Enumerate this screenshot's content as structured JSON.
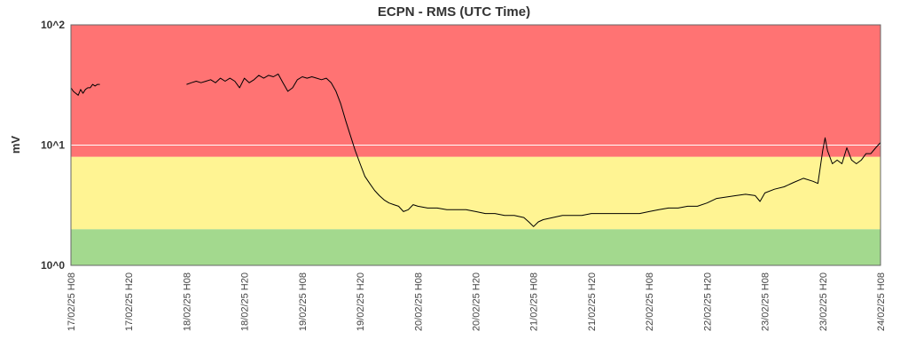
{
  "chart_data": {
    "type": "line",
    "title": "ECPN - RMS (UTC Time)",
    "ylabel": "mV",
    "xlabel": "",
    "y_scale": "log",
    "ylim": [
      1,
      100
    ],
    "y_ticks": [
      {
        "label": "10^0",
        "value": 1
      },
      {
        "label": "10^1",
        "value": 10
      },
      {
        "label": "10^2",
        "value": 100
      }
    ],
    "x_ticks": [
      {
        "label": "17/02/25 H08",
        "t": 0
      },
      {
        "label": "17/02/25 H20",
        "t": 12
      },
      {
        "label": "18/02/25 H08",
        "t": 24
      },
      {
        "label": "18/02/25 H20",
        "t": 36
      },
      {
        "label": "19/02/25 H08",
        "t": 48
      },
      {
        "label": "19/02/25 H20",
        "t": 60
      },
      {
        "label": "20/02/25 H08",
        "t": 72
      },
      {
        "label": "20/02/25 H20",
        "t": 84
      },
      {
        "label": "21/02/25 H08",
        "t": 96
      },
      {
        "label": "21/02/25 H20",
        "t": 108
      },
      {
        "label": "22/02/25 H08",
        "t": 120
      },
      {
        "label": "22/02/25 H20",
        "t": 132
      },
      {
        "label": "23/02/25 H08",
        "t": 144
      },
      {
        "label": "23/02/25 H20",
        "t": 156
      },
      {
        "label": "24/02/25 H08",
        "t": 168
      }
    ],
    "bands": [
      {
        "from": 1,
        "to": 2,
        "color": "#a3d98e"
      },
      {
        "from": 2,
        "to": 8,
        "color": "#fff493"
      },
      {
        "from": 8,
        "to": 100,
        "color": "#ff7373"
      }
    ],
    "grid": true,
    "line_color": "#000000",
    "series": [
      {
        "segments": [
          {
            "points": [
              [
                0,
                30
              ],
              [
                0.5,
                28
              ],
              [
                1,
                27
              ],
              [
                1.5,
                26
              ],
              [
                2,
                29
              ],
              [
                2.5,
                27
              ],
              [
                3,
                29
              ],
              [
                3.5,
                30
              ],
              [
                4,
                30
              ],
              [
                4.5,
                32
              ],
              [
                5,
                31
              ],
              [
                5.5,
                32
              ],
              [
                6,
                32
              ]
            ]
          },
          {
            "points": [
              [
                24,
                32
              ],
              [
                25,
                33
              ],
              [
                26,
                34
              ],
              [
                27,
                33
              ],
              [
                28,
                34
              ],
              [
                29,
                35
              ],
              [
                30,
                33
              ],
              [
                31,
                36
              ],
              [
                32,
                34
              ],
              [
                33,
                36
              ],
              [
                34,
                34
              ],
              [
                35,
                30
              ],
              [
                36,
                36
              ],
              [
                37,
                33
              ],
              [
                38,
                35
              ],
              [
                39,
                38
              ],
              [
                40,
                36
              ],
              [
                41,
                38
              ],
              [
                42,
                37
              ],
              [
                43,
                39
              ],
              [
                44,
                33
              ],
              [
                45,
                28
              ],
              [
                46,
                30
              ],
              [
                47,
                35
              ],
              [
                48,
                37
              ],
              [
                49,
                36
              ],
              [
                50,
                37
              ],
              [
                51,
                36
              ],
              [
                52,
                35
              ],
              [
                53,
                36
              ],
              [
                54,
                33
              ],
              [
                55,
                28
              ],
              [
                56,
                22
              ],
              [
                57,
                16
              ],
              [
                58,
                12
              ],
              [
                59,
                9
              ],
              [
                60,
                7
              ],
              [
                61,
                5.5
              ],
              [
                62,
                4.8
              ],
              [
                63,
                4.2
              ],
              [
                64,
                3.8
              ],
              [
                65,
                3.5
              ],
              [
                66,
                3.3
              ],
              [
                67,
                3.2
              ],
              [
                68,
                3.1
              ],
              [
                69,
                2.8
              ],
              [
                70,
                2.9
              ],
              [
                71,
                3.2
              ],
              [
                72,
                3.1
              ],
              [
                74,
                3.0
              ],
              [
                76,
                3.0
              ],
              [
                78,
                2.9
              ],
              [
                80,
                2.9
              ],
              [
                82,
                2.9
              ],
              [
                84,
                2.8
              ],
              [
                86,
                2.7
              ],
              [
                88,
                2.7
              ],
              [
                90,
                2.6
              ],
              [
                92,
                2.6
              ],
              [
                94,
                2.5
              ],
              [
                95,
                2.3
              ],
              [
                96,
                2.1
              ],
              [
                97,
                2.3
              ],
              [
                98,
                2.4
              ],
              [
                100,
                2.5
              ],
              [
                102,
                2.6
              ],
              [
                104,
                2.6
              ],
              [
                106,
                2.6
              ],
              [
                108,
                2.7
              ],
              [
                110,
                2.7
              ],
              [
                112,
                2.7
              ],
              [
                114,
                2.7
              ],
              [
                116,
                2.7
              ],
              [
                118,
                2.7
              ],
              [
                120,
                2.8
              ],
              [
                122,
                2.9
              ],
              [
                124,
                3.0
              ],
              [
                126,
                3.0
              ],
              [
                128,
                3.1
              ],
              [
                130,
                3.1
              ],
              [
                132,
                3.3
              ],
              [
                134,
                3.6
              ],
              [
                136,
                3.7
              ],
              [
                138,
                3.8
              ],
              [
                140,
                3.9
              ],
              [
                142,
                3.8
              ],
              [
                143,
                3.4
              ],
              [
                144,
                4.0
              ],
              [
                146,
                4.3
              ],
              [
                148,
                4.5
              ],
              [
                150,
                4.9
              ],
              [
                152,
                5.3
              ],
              [
                154,
                5.0
              ],
              [
                155,
                4.8
              ],
              [
                156,
                9.0
              ],
              [
                156.5,
                11.5
              ],
              [
                157,
                9.0
              ],
              [
                158,
                7.0
              ],
              [
                159,
                7.5
              ],
              [
                160,
                7.0
              ],
              [
                161,
                9.5
              ],
              [
                162,
                7.5
              ],
              [
                163,
                7.0
              ],
              [
                164,
                7.5
              ],
              [
                165,
                8.5
              ],
              [
                166,
                8.5
              ],
              [
                167,
                9.5
              ],
              [
                168,
                10.5
              ]
            ]
          }
        ]
      }
    ]
  }
}
